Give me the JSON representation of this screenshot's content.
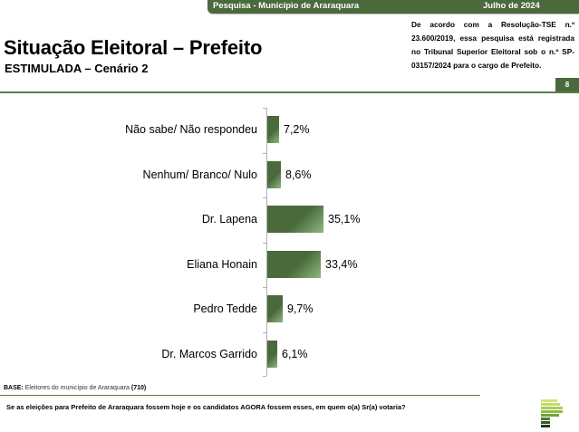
{
  "header": {
    "survey_label": "Pesquisa - Município de Araraquara",
    "date_label": "Julho de 2024",
    "title": "Situação Eleitoral – Prefeito",
    "subtitle": "ESTIMULADA – Cenário 2",
    "legal_text": "De acordo com a Resolução-TSE n.º 23.600/2019, essa pesquisa está registrada no Tribunal Superior Eleitoral sob o n.º SP-03157/2024 para o cargo de Prefeito.",
    "page_number": "8"
  },
  "colors": {
    "brand_green": "#4a6a3c",
    "bar_highlight": "#8fb87f",
    "rule": "#5b7e45"
  },
  "chart_data": {
    "type": "bar",
    "orientation": "horizontal",
    "title": "Situação Eleitoral – Prefeito",
    "subtitle": "ESTIMULADA – Cenário 2",
    "categories": [
      "Não sabe/ Não respondeu",
      "Nenhum/ Branco/ Nulo",
      "Dr. Lapena",
      "Eliana Honain",
      "Pedro Tedde",
      "Dr. Marcos Garrido"
    ],
    "values": [
      7.2,
      8.6,
      35.1,
      33.4,
      9.7,
      6.1
    ],
    "value_labels": [
      "7,2%",
      "8,6%",
      "35,1%",
      "33,4%",
      "9,7%",
      "6,1%"
    ],
    "unit": "%",
    "xlabel": "",
    "ylabel": "",
    "grid": false,
    "legend": "none"
  },
  "footer": {
    "base_label": "BASE:",
    "base_text": "Eleitores do município de Araraquara",
    "base_count": "(710)",
    "question": "Se as eleições para Prefeito de Araraquara fossem hoje e os candidatos AGORA fossem esses, em quem o(a) Sr(a) votaria?"
  }
}
